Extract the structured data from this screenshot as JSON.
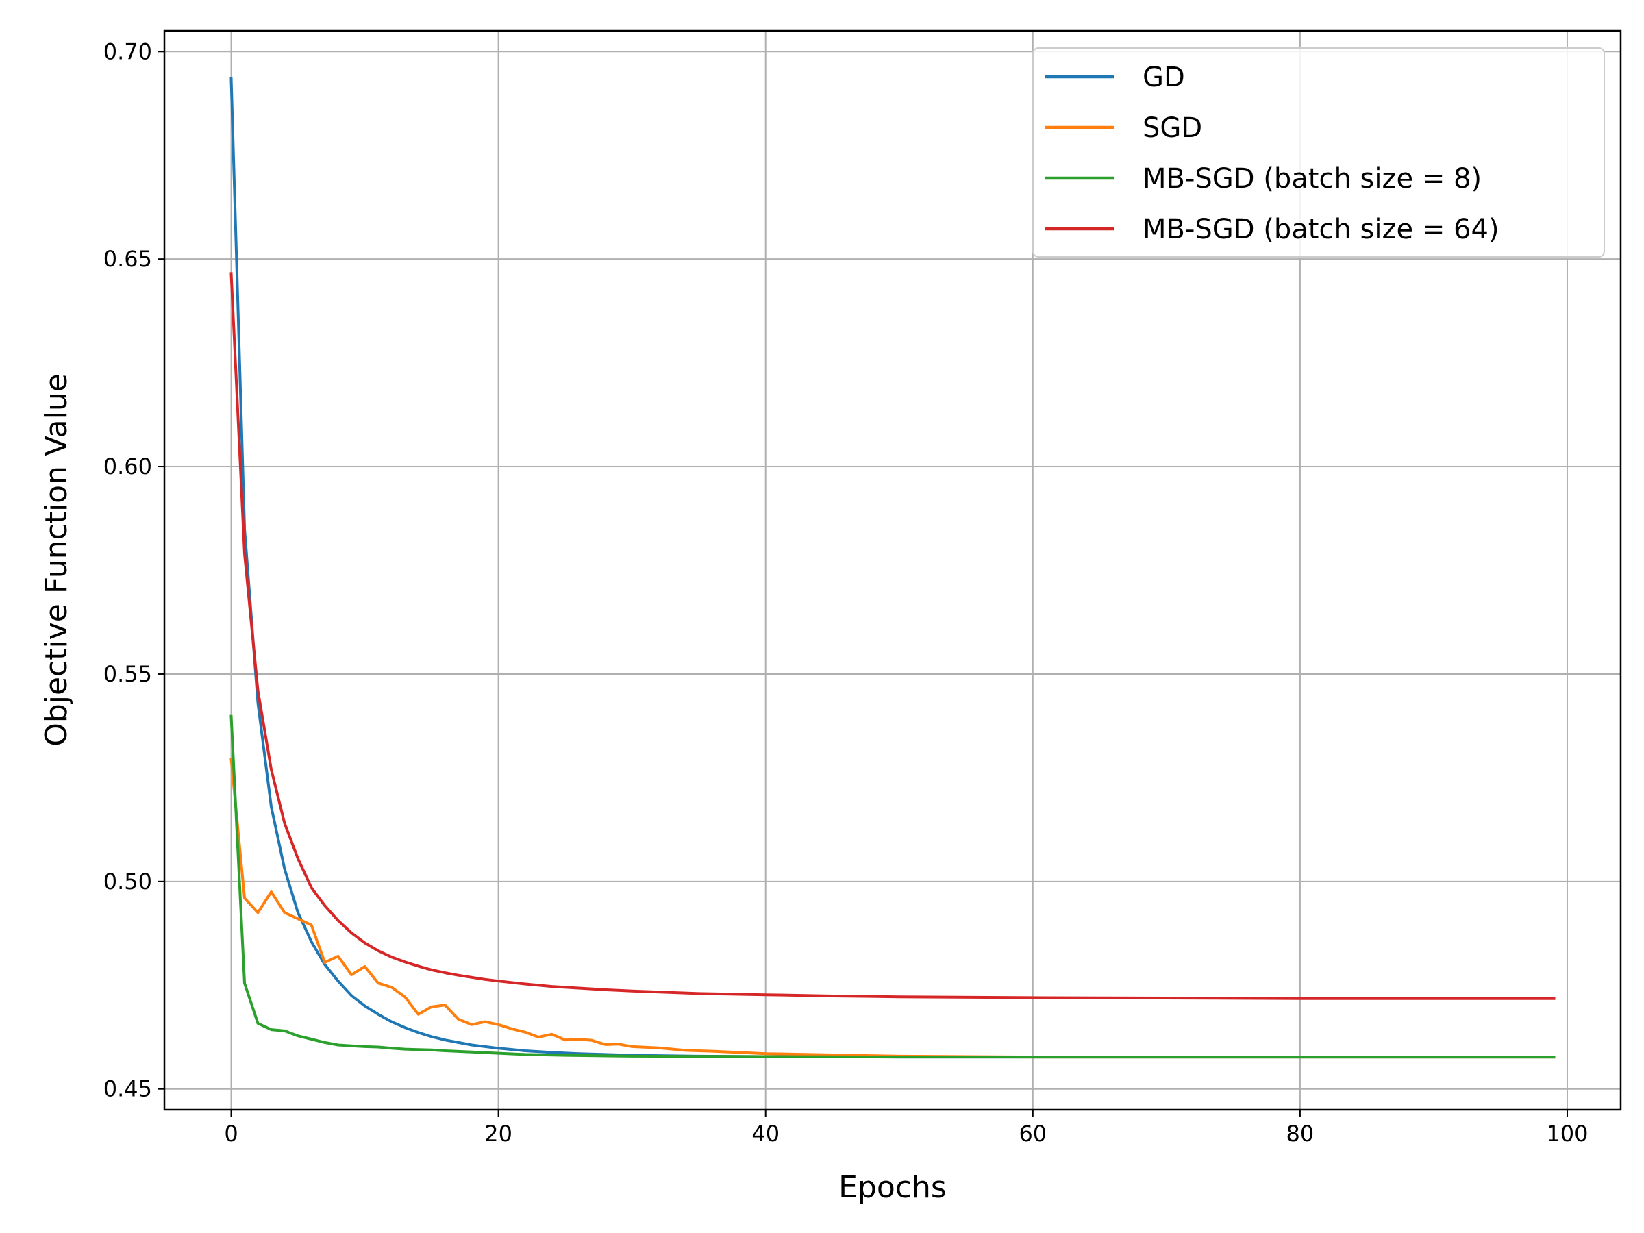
{
  "chart_data": {
    "type": "line",
    "title": "",
    "xlabel": "Epochs",
    "ylabel": "Objective Function Value",
    "xlim": [
      -5,
      104
    ],
    "ylim": [
      0.445,
      0.705
    ],
    "x_ticks": [
      0,
      20,
      40,
      60,
      80,
      100
    ],
    "x_tick_labels": [
      "0",
      "20",
      "40",
      "60",
      "80",
      "100"
    ],
    "y_ticks": [
      0.45,
      0.5,
      0.55,
      0.6,
      0.65,
      0.7
    ],
    "y_tick_labels": [
      "0.45",
      "0.50",
      "0.55",
      "0.60",
      "0.65",
      "0.70"
    ],
    "grid": true,
    "legend_position": "top-right",
    "series": [
      {
        "name": "GD",
        "color": "#1f77b4",
        "x": [
          0,
          1,
          2,
          3,
          4,
          5,
          6,
          7,
          8,
          9,
          10,
          11,
          12,
          13,
          14,
          15,
          16,
          17,
          18,
          19,
          20,
          22,
          24,
          26,
          28,
          30,
          35,
          40,
          45,
          50,
          60,
          70,
          80,
          90,
          99
        ],
        "y": [
          0.6935,
          0.585,
          0.543,
          0.518,
          0.503,
          0.4925,
          0.4855,
          0.48,
          0.476,
          0.4725,
          0.47,
          0.468,
          0.4662,
          0.4648,
          0.4636,
          0.4626,
          0.4618,
          0.4612,
          0.4606,
          0.4602,
          0.4598,
          0.4592,
          0.4588,
          0.4585,
          0.4583,
          0.4581,
          0.4579,
          0.4578,
          0.4578,
          0.4577,
          0.4577,
          0.4577,
          0.4577,
          0.4577,
          0.4577
        ]
      },
      {
        "name": "SGD",
        "color": "#ff7f0e",
        "x": [
          0,
          1,
          2,
          3,
          4,
          5,
          6,
          7,
          8,
          9,
          10,
          11,
          12,
          13,
          14,
          15,
          16,
          17,
          18,
          19,
          20,
          21,
          22,
          23,
          24,
          25,
          26,
          27,
          28,
          29,
          30,
          32,
          34,
          36,
          38,
          40,
          45,
          50,
          55,
          60,
          70,
          80,
          90,
          99
        ],
        "y": [
          0.5295,
          0.496,
          0.4925,
          0.4975,
          0.4925,
          0.491,
          0.4895,
          0.4805,
          0.482,
          0.4775,
          0.4795,
          0.4755,
          0.4745,
          0.4722,
          0.468,
          0.4698,
          0.4702,
          0.4668,
          0.4655,
          0.4662,
          0.4655,
          0.4645,
          0.4637,
          0.4625,
          0.4632,
          0.4618,
          0.462,
          0.4617,
          0.4607,
          0.4608,
          0.4602,
          0.4599,
          0.4593,
          0.4591,
          0.4588,
          0.4585,
          0.4582,
          0.4579,
          0.4578,
          0.4577,
          0.4577,
          0.4577,
          0.4577,
          0.4577
        ]
      },
      {
        "name": "MB-SGD (batch size = 8)",
        "color": "#2ca02c",
        "x": [
          0,
          1,
          2,
          3,
          4,
          5,
          6,
          7,
          8,
          9,
          10,
          11,
          12,
          13,
          14,
          15,
          16,
          18,
          20,
          22,
          25,
          30,
          40,
          50,
          60,
          70,
          80,
          90,
          99
        ],
        "y": [
          0.5398,
          0.4755,
          0.4658,
          0.4643,
          0.464,
          0.4628,
          0.462,
          0.4612,
          0.4606,
          0.4604,
          0.4602,
          0.4601,
          0.4598,
          0.4596,
          0.4595,
          0.4594,
          0.4592,
          0.4589,
          0.4586,
          0.4583,
          0.4581,
          0.4579,
          0.4578,
          0.4577,
          0.4577,
          0.4577,
          0.4577,
          0.4577,
          0.4577
        ]
      },
      {
        "name": "MB-SGD (batch size = 64)",
        "color": "#d62728",
        "x": [
          0,
          1,
          2,
          3,
          4,
          5,
          6,
          7,
          8,
          9,
          10,
          11,
          12,
          13,
          14,
          15,
          16,
          17,
          18,
          19,
          20,
          22,
          24,
          26,
          28,
          30,
          35,
          40,
          45,
          50,
          60,
          70,
          80,
          90,
          99
        ],
        "y": [
          0.6465,
          0.579,
          0.546,
          0.527,
          0.514,
          0.5055,
          0.4985,
          0.4942,
          0.4906,
          0.4876,
          0.4852,
          0.4833,
          0.4818,
          0.4806,
          0.4796,
          0.4787,
          0.478,
          0.4774,
          0.4769,
          0.4764,
          0.476,
          0.4753,
          0.4747,
          0.4743,
          0.4739,
          0.4736,
          0.473,
          0.4727,
          0.4724,
          0.4722,
          0.472,
          0.4719,
          0.4718,
          0.4718,
          0.4718
        ]
      }
    ]
  }
}
